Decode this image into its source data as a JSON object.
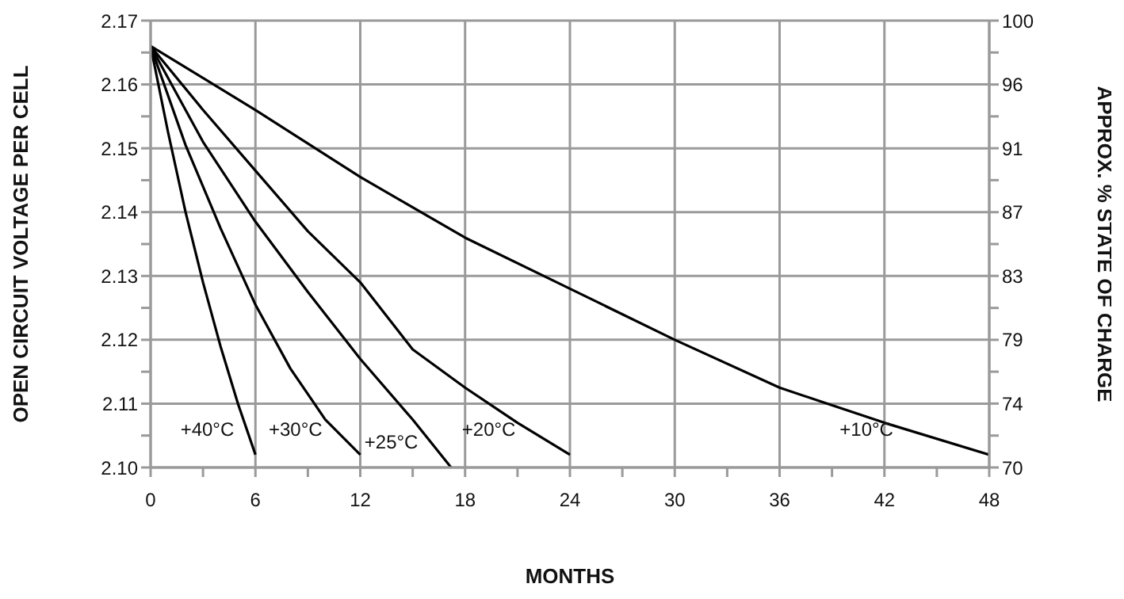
{
  "chart_data": {
    "type": "line",
    "xlabel": "MONTHS",
    "ylabel": "OPEN CIRCUIT VOLTAGE PER CELL",
    "y2label": "APPROX. % STATE OF CHARGE",
    "xlim": [
      0,
      48
    ],
    "xticks": [
      0,
      {
        "value": 3,
        "label": null
      },
      6,
      {
        "value": 9,
        "label": null
      },
      12,
      {
        "value": 15,
        "label": null
      },
      18,
      {
        "value": 21,
        "label": null
      },
      24,
      {
        "value": 27,
        "label": null
      },
      30,
      {
        "value": 33,
        "label": null
      },
      36,
      {
        "value": 39,
        "label": null
      },
      42,
      {
        "value": 45,
        "label": null
      },
      48
    ],
    "ylim": [
      2.1,
      2.17
    ],
    "yticks": [
      {
        "value": 2.1,
        "label": "2.10"
      },
      {
        "value": 2.105,
        "label": null
      },
      {
        "value": 2.11,
        "label": "2.11"
      },
      {
        "value": 2.115,
        "label": null
      },
      {
        "value": 2.12,
        "label": "2.12"
      },
      {
        "value": 2.125,
        "label": null
      },
      {
        "value": 2.13,
        "label": "2.13"
      },
      {
        "value": 2.135,
        "label": null
      },
      {
        "value": 2.14,
        "label": "2.14"
      },
      {
        "value": 2.145,
        "label": null
      },
      {
        "value": 2.15,
        "label": "2.15"
      },
      {
        "value": 2.155,
        "label": null
      },
      {
        "value": 2.16,
        "label": "2.16"
      },
      {
        "value": 2.165,
        "label": null
      },
      {
        "value": 2.17,
        "label": "2.17"
      }
    ],
    "y2lim": [
      70,
      100
    ],
    "y2ticks": [
      70,
      {
        "value": 72.14,
        "label": null
      },
      {
        "value": 74.29,
        "label": "74"
      },
      {
        "value": 76.43,
        "label": null
      },
      {
        "value": 78.57,
        "label": "79"
      },
      {
        "value": 80.71,
        "label": null
      },
      {
        "value": 82.86,
        "label": "83"
      },
      {
        "value": 85,
        "label": null
      },
      {
        "value": 87.14,
        "label": "87"
      },
      {
        "value": 89.29,
        "label": null
      },
      {
        "value": 91.43,
        "label": "91"
      },
      {
        "value": 93.57,
        "label": null
      },
      {
        "value": 95.71,
        "label": "96"
      },
      {
        "value": 97.86,
        "label": null
      },
      100
    ],
    "grid": true,
    "marker": "none",
    "line_style": "solid",
    "series": [
      {
        "name": "+40°C",
        "color": "#000000",
        "x": [
          0,
          1,
          2,
          3,
          4,
          5,
          6
        ],
        "values": [
          2.166,
          2.1525,
          2.14,
          2.129,
          2.119,
          2.11,
          2.102
        ]
      },
      {
        "name": "+30°C",
        "color": "#000000",
        "x": [
          0,
          2,
          4,
          6,
          8,
          10,
          12
        ],
        "values": [
          2.166,
          2.1505,
          2.1375,
          2.1255,
          2.1155,
          2.1075,
          2.102
        ]
      },
      {
        "name": "+25°C",
        "color": "#000000",
        "x": [
          0,
          3,
          6,
          9,
          12,
          15,
          17.2
        ],
        "values": [
          2.166,
          2.151,
          2.1385,
          2.1275,
          2.117,
          2.1075,
          2.1
        ]
      },
      {
        "name": "+20°C",
        "color": "#000000",
        "x": [
          0,
          3,
          6,
          9,
          12,
          15,
          18,
          21,
          24
        ],
        "values": [
          2.166,
          2.156,
          2.1465,
          2.137,
          2.129,
          2.1185,
          2.1125,
          2.107,
          2.102
        ]
      },
      {
        "name": "+10°C",
        "color": "#000000",
        "x": [
          0,
          6,
          12,
          18,
          24,
          30,
          36,
          42,
          48
        ],
        "values": [
          2.166,
          2.156,
          2.1455,
          2.136,
          2.128,
          2.12,
          2.1125,
          2.107,
          2.102
        ]
      }
    ]
  }
}
